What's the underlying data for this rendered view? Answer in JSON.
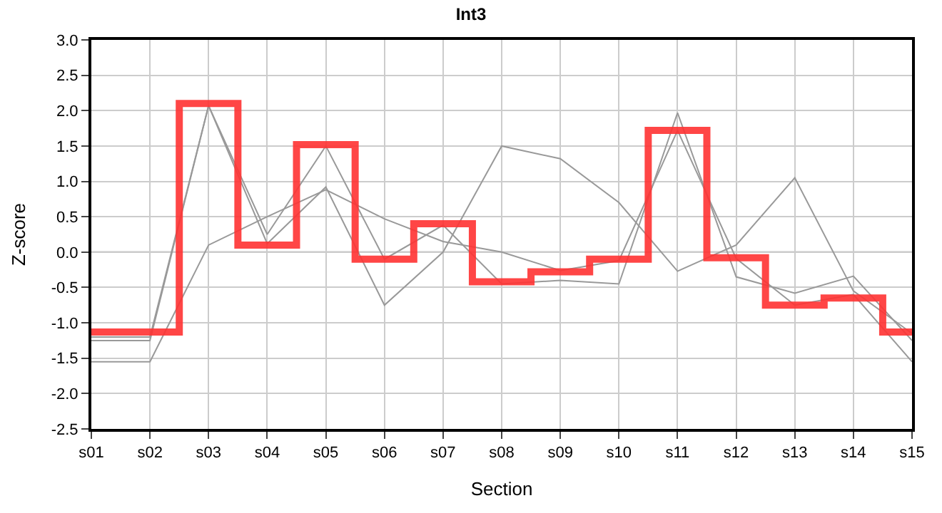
{
  "chart_data": {
    "type": "line",
    "title": "Int3",
    "xlabel": "Section",
    "ylabel": "Z-score",
    "categories": [
      "s01",
      "s02",
      "s03",
      "s04",
      "s05",
      "s06",
      "s07",
      "s08",
      "s09",
      "s10",
      "s11",
      "s12",
      "s13",
      "s14",
      "s15"
    ],
    "series": [
      {
        "color": "#999999",
        "values": [
          -1.55,
          -1.55,
          0.1,
          0.5,
          0.88,
          0.47,
          0.15,
          0.0,
          -0.26,
          -0.12,
          1.72,
          -0.09,
          -0.75,
          -0.6,
          -1.55
        ]
      },
      {
        "color": "#999999",
        "values": [
          -1.25,
          -1.25,
          2.07,
          0.25,
          1.5,
          -0.1,
          0.38,
          -0.45,
          -0.4,
          -0.45,
          1.97,
          -0.35,
          -0.58,
          -0.34,
          -1.25
        ]
      },
      {
        "color": "#999999",
        "values": [
          -1.2,
          -1.2,
          2.07,
          0.12,
          0.92,
          -0.75,
          0.0,
          1.5,
          1.32,
          0.7,
          -0.27,
          0.1,
          1.05,
          -0.55,
          -1.15
        ]
      },
      {
        "type": "step",
        "color": "#ff3333",
        "values": [
          -1.13,
          -1.13,
          2.1,
          0.1,
          1.52,
          -0.1,
          0.4,
          -0.42,
          -0.28,
          -0.1,
          1.72,
          -0.08,
          -0.75,
          -0.65,
          -1.13
        ]
      }
    ],
    "ylim": [
      -2.5,
      3.0
    ],
    "yticks": [
      {
        "value": -2.5,
        "label": "-2.5"
      },
      {
        "value": -2,
        "label": "-2.0"
      },
      {
        "value": -1.5,
        "label": "-1.5"
      },
      {
        "value": -1,
        "label": "-1.0"
      },
      {
        "value": -0.5,
        "label": "-0.5"
      },
      {
        "value": 0,
        "label": "0.0"
      },
      {
        "value": 0.5,
        "label": "0.5"
      },
      {
        "value": 1,
        "label": "1.0"
      },
      {
        "value": 1.5,
        "label": "1.5"
      },
      {
        "value": 2,
        "label": "2.0"
      },
      {
        "value": 2.5,
        "label": "2.5"
      },
      {
        "value": 3,
        "label": "3.0"
      }
    ],
    "ref_lines": [
      {
        "axis": "y",
        "value": 0,
        "color": "#888888"
      }
    ],
    "grid": true,
    "marker": "none",
    "line_style": "solid"
  }
}
